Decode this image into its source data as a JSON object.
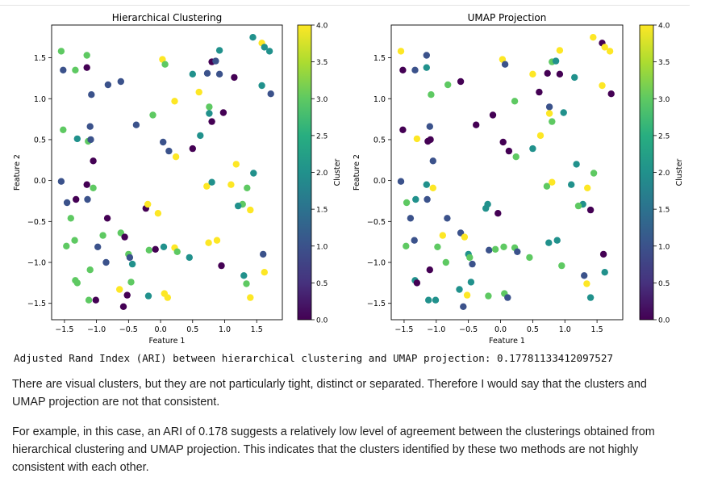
{
  "output_line": "Adjusted Rand Index (ARI) between hierarchical clustering and UMAP projection: 0.17781133412097527",
  "paragraphs": [
    "There are visual clusters, but they are not particularly tight, distinct or separated. Therefore I would say that the clusters and UMAP projection are not that consistent.",
    "For example, in this case, an ARI of 0.178 suggests a relatively low level of agreement between the clusterings obtained from hierarchical clustering and UMAP projection. This indicates that the clusters identified by these two methods are not highly consistent with each other."
  ],
  "colormap": [
    "#440154",
    "#3b528b",
    "#21918c",
    "#5ec962",
    "#fde725"
  ],
  "chart_data": [
    {
      "type": "scatter",
      "title": "Hierarchical Clustering",
      "xlabel": "Feature 1",
      "ylabel": "Feature 2",
      "xlim": [
        -1.7,
        1.9
      ],
      "ylim": [
        -1.7,
        1.9
      ],
      "xticks": [
        -1.5,
        -1.0,
        -0.5,
        0.0,
        0.5,
        1.0,
        1.5
      ],
      "yticks": [
        -1.5,
        -1.0,
        -0.5,
        0.0,
        0.5,
        1.0,
        1.5
      ],
      "colorbar": {
        "label": "Cluster",
        "min": 0,
        "max": 4,
        "ticks": [
          0.0,
          0.5,
          1.0,
          1.5,
          2.0,
          2.5,
          3.0,
          3.5,
          4.0
        ]
      },
      "grid": false,
      "points": [
        [
          -1.55,
          1.58,
          3
        ],
        [
          -1.52,
          1.35,
          1
        ],
        [
          -1.33,
          1.35,
          3
        ],
        [
          -1.15,
          1.53,
          3
        ],
        [
          -1.15,
          1.38,
          0
        ],
        [
          -1.08,
          1.05,
          1
        ],
        [
          -0.82,
          1.17,
          1
        ],
        [
          -0.62,
          1.21,
          1
        ],
        [
          -1.52,
          0.62,
          3
        ],
        [
          -1.3,
          0.51,
          2
        ],
        [
          -1.1,
          0.66,
          1
        ],
        [
          -1.13,
          0.48,
          3
        ],
        [
          -1.09,
          0.5,
          1
        ],
        [
          -1.05,
          0.24,
          0
        ],
        [
          -0.38,
          0.68,
          1
        ],
        [
          -0.12,
          0.8,
          3
        ],
        [
          0.03,
          1.48,
          4
        ],
        [
          0.07,
          1.42,
          3
        ],
        [
          0.22,
          0.97,
          4
        ],
        [
          0.5,
          1.3,
          2
        ],
        [
          0.6,
          1.08,
          4
        ],
        [
          0.8,
          1.45,
          0
        ],
        [
          0.86,
          1.46,
          1
        ],
        [
          0.73,
          1.31,
          1
        ],
        [
          0.92,
          1.59,
          2
        ],
        [
          0.92,
          1.3,
          1
        ],
        [
          1.15,
          1.26,
          0
        ],
        [
          1.44,
          1.75,
          2
        ],
        [
          1.58,
          1.68,
          4
        ],
        [
          1.62,
          1.63,
          2
        ],
        [
          1.7,
          1.58,
          2
        ],
        [
          1.58,
          1.16,
          2
        ],
        [
          1.72,
          1.06,
          1
        ],
        [
          0.76,
          0.9,
          3
        ],
        [
          0.76,
          0.82,
          2
        ],
        [
          0.8,
          0.72,
          0
        ],
        [
          0.98,
          0.83,
          0
        ],
        [
          0.04,
          0.47,
          1
        ],
        [
          0.13,
          0.36,
          1
        ],
        [
          0.24,
          0.29,
          4
        ],
        [
          0.5,
          0.39,
          0
        ],
        [
          0.62,
          0.55,
          2
        ],
        [
          -1.55,
          -0.01,
          1
        ],
        [
          -1.46,
          -0.27,
          1
        ],
        [
          -1.32,
          -0.23,
          0
        ],
        [
          -1.15,
          -0.05,
          0
        ],
        [
          -1.14,
          -0.23,
          1
        ],
        [
          -1.05,
          -0.09,
          3
        ],
        [
          -1.4,
          -0.46,
          3
        ],
        [
          -1.47,
          -0.8,
          3
        ],
        [
          -1.34,
          -0.73,
          3
        ],
        [
          -1.1,
          -1.09,
          3
        ],
        [
          -1.33,
          -1.22,
          3
        ],
        [
          -1.3,
          -1.25,
          3
        ],
        [
          -0.98,
          -0.81,
          1
        ],
        [
          -0.9,
          -0.67,
          3
        ],
        [
          -0.83,
          -0.46,
          0
        ],
        [
          -0.85,
          -1.0,
          1
        ],
        [
          -1.12,
          -1.46,
          3
        ],
        [
          -1.01,
          -1.46,
          0
        ],
        [
          -0.62,
          -0.64,
          3
        ],
        [
          -0.56,
          -0.69,
          0
        ],
        [
          -0.5,
          -0.9,
          3
        ],
        [
          -0.48,
          -0.94,
          1
        ],
        [
          -0.44,
          -1.02,
          2
        ],
        [
          -0.46,
          -1.24,
          3
        ],
        [
          -0.64,
          -1.33,
          4
        ],
        [
          -0.58,
          -1.54,
          0
        ],
        [
          -0.52,
          -1.4,
          0
        ],
        [
          -0.23,
          -0.34,
          0
        ],
        [
          -0.2,
          -0.29,
          4
        ],
        [
          -0.19,
          -1.41,
          2
        ],
        [
          -0.18,
          -0.85,
          3
        ],
        [
          -0.08,
          -0.84,
          0
        ],
        [
          -0.04,
          -0.4,
          4
        ],
        [
          0.05,
          -0.81,
          2
        ],
        [
          0.06,
          -1.38,
          4
        ],
        [
          0.11,
          -1.43,
          4
        ],
        [
          0.22,
          -0.82,
          4
        ],
        [
          0.26,
          -0.87,
          3
        ],
        [
          0.45,
          -0.94,
          2
        ],
        [
          0.72,
          -0.07,
          4
        ],
        [
          0.8,
          -0.02,
          2
        ],
        [
          0.75,
          -0.76,
          4
        ],
        [
          0.88,
          -0.73,
          4
        ],
        [
          0.95,
          -1.04,
          0
        ],
        [
          1.1,
          -0.05,
          4
        ],
        [
          1.18,
          0.2,
          4
        ],
        [
          1.28,
          -0.29,
          3
        ],
        [
          1.21,
          -0.31,
          2
        ],
        [
          1.35,
          -0.09,
          3
        ],
        [
          1.4,
          -0.36,
          4
        ],
        [
          1.45,
          0.09,
          2
        ],
        [
          1.3,
          -1.16,
          2
        ],
        [
          1.34,
          -1.26,
          3
        ],
        [
          1.4,
          -1.43,
          4
        ],
        [
          1.6,
          -0.9,
          1
        ],
        [
          1.62,
          -1.12,
          4
        ]
      ]
    },
    {
      "type": "scatter",
      "title": "UMAP Projection",
      "xlabel": "Feature 1",
      "ylabel": "Feature 2",
      "xlim": [
        -1.7,
        1.9
      ],
      "ylim": [
        -1.7,
        1.9
      ],
      "xticks": [
        -1.5,
        -1.0,
        -0.5,
        0.0,
        0.5,
        1.0,
        1.5
      ],
      "yticks": [
        -1.5,
        -1.0,
        -0.5,
        0.0,
        0.5,
        1.0,
        1.5
      ],
      "colorbar": {
        "label": "Cluster",
        "min": 0,
        "max": 4,
        "ticks": [
          0.0,
          0.5,
          1.0,
          1.5,
          2.0,
          2.5,
          3.0,
          3.5,
          4.0
        ]
      },
      "grid": false,
      "points": [
        [
          -1.55,
          1.58,
          4
        ],
        [
          -1.52,
          1.35,
          0
        ],
        [
          -1.33,
          1.35,
          1
        ],
        [
          -1.15,
          1.53,
          1
        ],
        [
          -1.15,
          1.38,
          2
        ],
        [
          -1.08,
          1.05,
          3
        ],
        [
          -0.82,
          1.17,
          3
        ],
        [
          -0.62,
          1.21,
          0
        ],
        [
          -1.52,
          0.62,
          0
        ],
        [
          -1.3,
          0.51,
          4
        ],
        [
          -1.1,
          0.66,
          1
        ],
        [
          -1.13,
          0.48,
          0
        ],
        [
          -1.09,
          0.5,
          0
        ],
        [
          -1.05,
          0.24,
          1
        ],
        [
          -0.38,
          0.68,
          0
        ],
        [
          -0.12,
          0.8,
          0
        ],
        [
          0.03,
          1.48,
          4
        ],
        [
          0.07,
          1.42,
          1
        ],
        [
          0.22,
          0.97,
          3
        ],
        [
          0.5,
          1.3,
          4
        ],
        [
          0.6,
          1.08,
          0
        ],
        [
          0.8,
          1.45,
          3
        ],
        [
          0.86,
          1.46,
          2
        ],
        [
          0.73,
          1.31,
          0
        ],
        [
          0.92,
          1.59,
          4
        ],
        [
          0.92,
          1.3,
          0
        ],
        [
          1.15,
          1.26,
          2
        ],
        [
          1.44,
          1.75,
          4
        ],
        [
          1.58,
          1.68,
          0
        ],
        [
          1.62,
          1.63,
          4
        ],
        [
          1.7,
          1.58,
          4
        ],
        [
          1.58,
          1.16,
          4
        ],
        [
          1.72,
          1.06,
          0
        ],
        [
          0.76,
          0.9,
          1
        ],
        [
          0.76,
          0.82,
          4
        ],
        [
          0.8,
          0.72,
          3
        ],
        [
          0.98,
          0.83,
          2
        ],
        [
          0.04,
          0.47,
          0
        ],
        [
          0.13,
          0.36,
          0
        ],
        [
          0.24,
          0.29,
          3
        ],
        [
          0.5,
          0.39,
          2
        ],
        [
          0.62,
          0.55,
          4
        ],
        [
          -1.55,
          -0.01,
          1
        ],
        [
          -1.46,
          -0.27,
          3
        ],
        [
          -1.32,
          -0.23,
          2
        ],
        [
          -1.15,
          -0.05,
          2
        ],
        [
          -1.14,
          -0.23,
          1
        ],
        [
          -1.05,
          -0.09,
          4
        ],
        [
          -1.4,
          -0.46,
          1
        ],
        [
          -1.47,
          -0.8,
          3
        ],
        [
          -1.34,
          -0.73,
          1
        ],
        [
          -1.1,
          -1.09,
          0
        ],
        [
          -1.33,
          -1.22,
          2
        ],
        [
          -1.3,
          -1.25,
          0
        ],
        [
          -0.98,
          -0.81,
          3
        ],
        [
          -0.9,
          -0.67,
          4
        ],
        [
          -0.83,
          -0.46,
          1
        ],
        [
          -0.85,
          -1.0,
          3
        ],
        [
          -1.12,
          -1.46,
          2
        ],
        [
          -1.01,
          -1.46,
          2
        ],
        [
          -0.62,
          -0.64,
          1
        ],
        [
          -0.56,
          -0.69,
          4
        ],
        [
          -0.5,
          -0.9,
          2
        ],
        [
          -0.48,
          -0.94,
          3
        ],
        [
          -0.44,
          -1.02,
          1
        ],
        [
          -0.46,
          -1.24,
          2
        ],
        [
          -0.64,
          -1.33,
          2
        ],
        [
          -0.58,
          -1.54,
          1
        ],
        [
          -0.52,
          -1.4,
          4
        ],
        [
          -0.23,
          -0.34,
          2
        ],
        [
          -0.2,
          -0.29,
          2
        ],
        [
          -0.19,
          -1.41,
          3
        ],
        [
          -0.18,
          -0.85,
          1
        ],
        [
          -0.08,
          -0.84,
          3
        ],
        [
          -0.04,
          -0.4,
          0
        ],
        [
          0.05,
          -0.81,
          3
        ],
        [
          0.06,
          -1.38,
          3
        ],
        [
          0.11,
          -1.43,
          1
        ],
        [
          0.22,
          -0.82,
          3
        ],
        [
          0.26,
          -0.87,
          1
        ],
        [
          0.45,
          -0.94,
          3
        ],
        [
          0.72,
          -0.07,
          3
        ],
        [
          0.8,
          -0.02,
          4
        ],
        [
          0.75,
          -0.76,
          2
        ],
        [
          0.88,
          -0.73,
          2
        ],
        [
          0.95,
          -1.04,
          3
        ],
        [
          1.1,
          -0.05,
          2
        ],
        [
          1.18,
          0.2,
          2
        ],
        [
          1.28,
          -0.29,
          2
        ],
        [
          1.21,
          -0.31,
          3
        ],
        [
          1.35,
          -0.09,
          4
        ],
        [
          1.4,
          -0.36,
          0
        ],
        [
          1.45,
          0.09,
          3
        ],
        [
          1.3,
          -1.16,
          1
        ],
        [
          1.34,
          -1.26,
          4
        ],
        [
          1.4,
          -1.43,
          2
        ],
        [
          1.6,
          -0.9,
          0
        ],
        [
          1.62,
          -1.12,
          2
        ]
      ]
    }
  ]
}
